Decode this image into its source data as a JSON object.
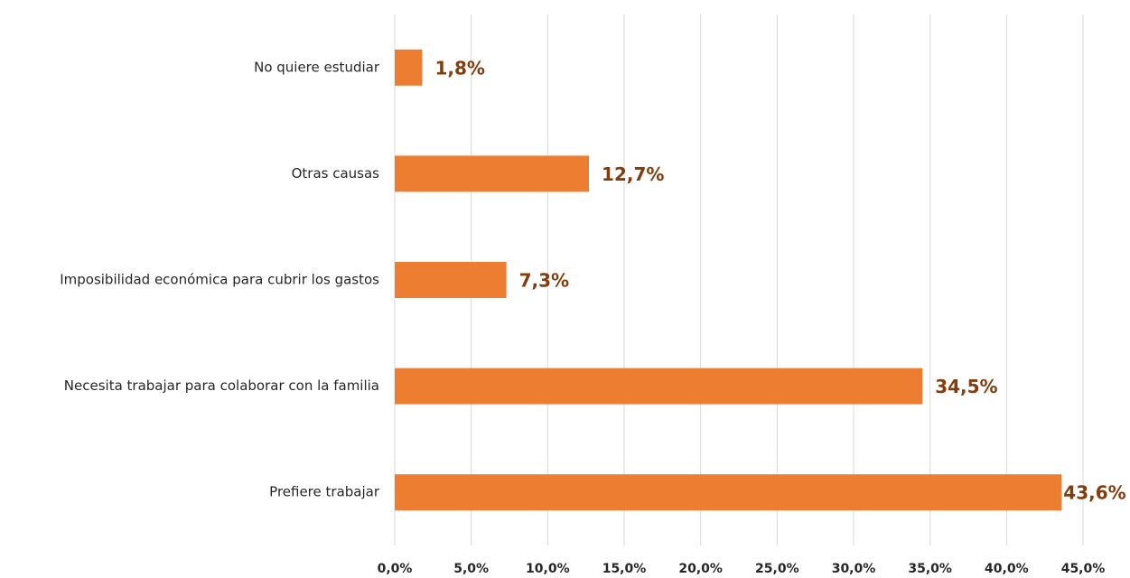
{
  "chart_data": {
    "type": "bar",
    "orientation": "horizontal",
    "categories": [
      "No quiere estudiar",
      "Otras causas",
      "Imposibilidad económica para cubrir los gastos",
      "Necesita trabajar para colaborar con la familia",
      "Prefiere trabajar"
    ],
    "values": [
      1.8,
      12.7,
      7.3,
      34.5,
      43.6
    ],
    "value_labels": [
      "1,8%",
      "12,7%",
      "7,3%",
      "34,5%",
      "43,6%"
    ],
    "color": "#ed7d31",
    "xlim": [
      0,
      45
    ],
    "xticks": [
      {
        "value": 0,
        "label": "0,0%"
      },
      {
        "value": 5,
        "label": "5,0%"
      },
      {
        "value": 10,
        "label": "10,0%"
      },
      {
        "value": 15,
        "label": "15,0%"
      },
      {
        "value": 20,
        "label": "20,0%"
      },
      {
        "value": 25,
        "label": "25,0%"
      },
      {
        "value": 30,
        "label": "30,0%"
      },
      {
        "value": 35,
        "label": "35,0%"
      },
      {
        "value": 40,
        "label": "40,0%"
      },
      {
        "value": 45,
        "label": "45,0%"
      }
    ],
    "grid": true
  }
}
